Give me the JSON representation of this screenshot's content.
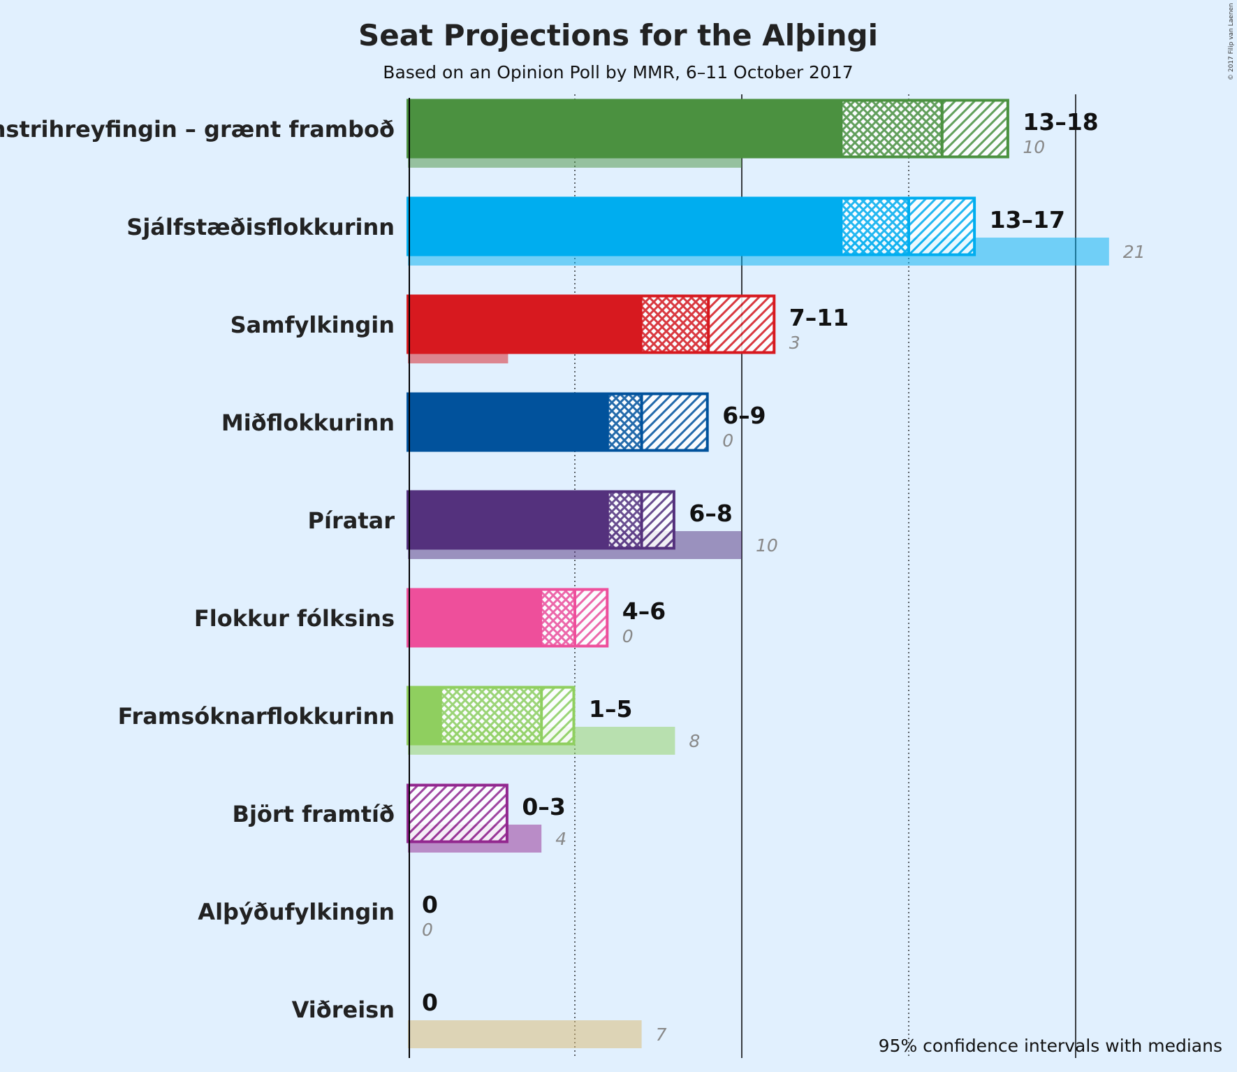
{
  "chart_data": {
    "type": "bar",
    "title": "Seat Projections for the Alþingi",
    "subtitle": "Based on an Opinion Poll by MMR, 6–11 October 2017",
    "footnote": "95% confidence intervals with medians",
    "copyright": "© 2017 Filip van Laenen",
    "xlim": [
      0,
      21
    ],
    "gridlines": [
      5,
      10,
      15,
      20
    ],
    "parties": [
      {
        "name": "Vinstrihreyfingin – grænt framboð",
        "color": "#4b9140",
        "low": 13,
        "ci80_low": 13,
        "median": 16,
        "ci80_high": 16,
        "high": 18,
        "last": 10,
        "range_label": "13–18",
        "last_label": "10"
      },
      {
        "name": "Sjálfstæðisflokkurinn",
        "color": "#00adef",
        "low": 13,
        "ci80_low": 13,
        "median": 15,
        "ci80_high": 15,
        "high": 17,
        "last": 21,
        "range_label": "13–17",
        "last_label": "21"
      },
      {
        "name": "Samfylkingin",
        "color": "#d7191f",
        "low": 7,
        "ci80_low": 7,
        "median": 9,
        "ci80_high": 9,
        "high": 11,
        "last": 3,
        "range_label": "7–11",
        "last_label": "3"
      },
      {
        "name": "Miðflokkurinn",
        "color": "#01529c",
        "low": 6,
        "ci80_low": 6,
        "median": 7,
        "ci80_high": 7,
        "high": 9,
        "last": 0,
        "range_label": "6–9",
        "last_label": "0"
      },
      {
        "name": "Píratar",
        "color": "#54317d",
        "low": 6,
        "ci80_low": 6,
        "median": 7,
        "ci80_high": 7,
        "high": 8,
        "last": 10,
        "range_label": "6–8",
        "last_label": "10"
      },
      {
        "name": "Flokkur fólksins",
        "color": "#ee4f9b",
        "low": 4,
        "ci80_low": 4,
        "median": 5,
        "ci80_high": 5,
        "high": 6,
        "last": 0,
        "range_label": "4–6",
        "last_label": "0"
      },
      {
        "name": "Framsóknarflokkurinn",
        "color": "#8fcf5f",
        "low": 1,
        "ci80_low": 1,
        "median": 4,
        "ci80_high": 4,
        "high": 5,
        "last": 8,
        "range_label": "1–5",
        "last_label": "8"
      },
      {
        "name": "Björt framtíð",
        "color": "#92278f",
        "low": 0,
        "ci80_low": 0,
        "median": 0,
        "ci80_high": 0,
        "high": 3,
        "last": 4,
        "range_label": "0–3",
        "last_label": "4"
      },
      {
        "name": "Alþýðufylkingin",
        "color": "#c0202f",
        "low": 0,
        "ci80_low": 0,
        "median": 0,
        "ci80_high": 0,
        "high": 0,
        "last": 0,
        "range_label": "0",
        "last_label": "0"
      },
      {
        "name": "Viðreisn",
        "color": "#d9b76e",
        "low": 0,
        "ci80_low": 0,
        "median": 0,
        "ci80_high": 0,
        "high": 0,
        "last": 7,
        "range_label": "0",
        "last_label": "7"
      }
    ]
  }
}
